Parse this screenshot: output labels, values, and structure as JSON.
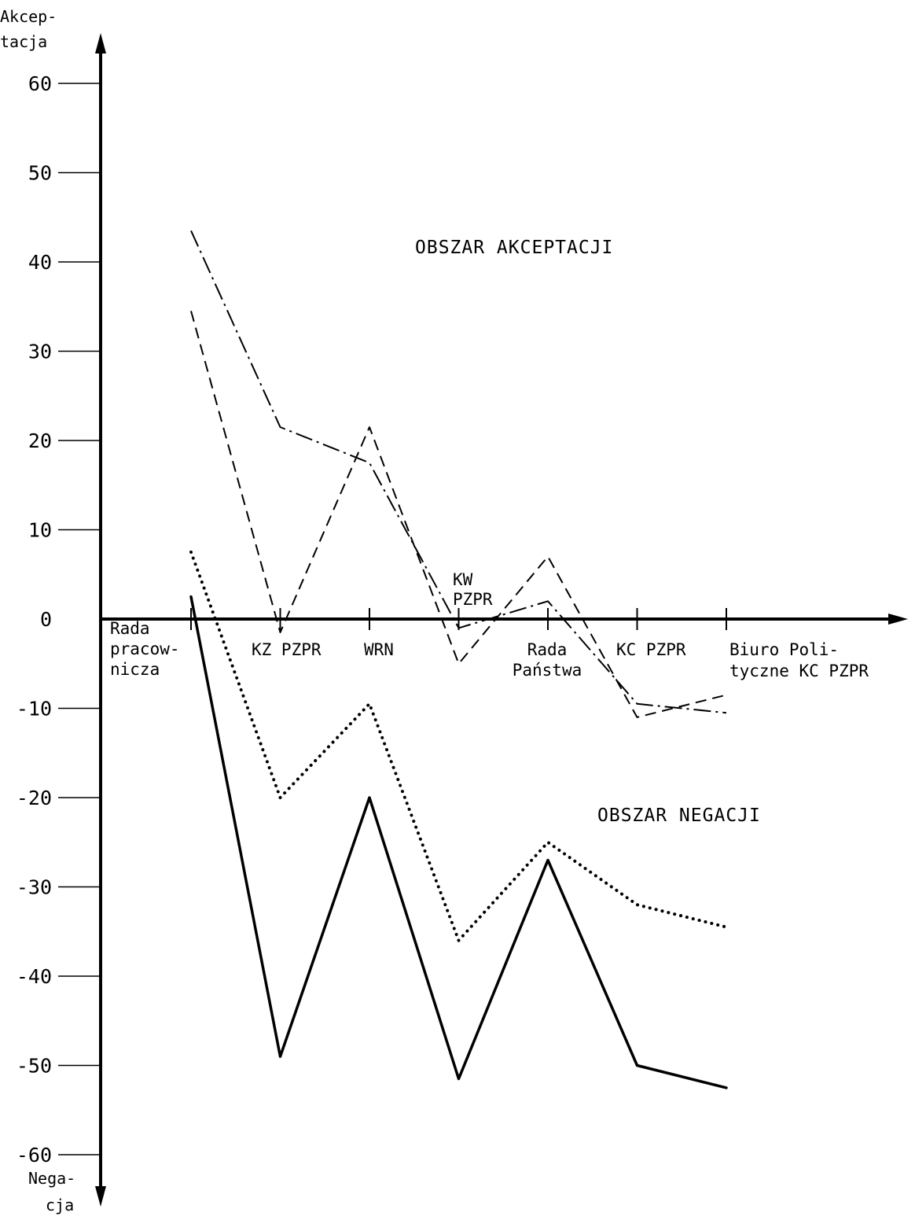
{
  "chart_data": {
    "type": "line",
    "title": "",
    "ylabel_top": [
      "Akcep-",
      "tacja"
    ],
    "ylabel_bottom": [
      "Nega-",
      "cja"
    ],
    "ylim": [
      -60,
      60
    ],
    "yticks": [
      60,
      50,
      40,
      30,
      20,
      10,
      0,
      -10,
      -20,
      -30,
      -40,
      -50,
      -60
    ],
    "ytick_labels": [
      "60",
      "50",
      "40",
      "30",
      "20",
      "10",
      "0",
      "-10",
      "-20",
      "-30",
      "-40",
      "-50",
      "-60"
    ],
    "categories": [
      [
        "Rada",
        "pracow-",
        "nicza"
      ],
      [
        "KZ PZPR"
      ],
      [
        "WRN"
      ],
      [
        "KW",
        "PZPR"
      ],
      [
        "Rada",
        "Państwa"
      ],
      [
        "KC PZPR"
      ],
      [
        "Biuro Poli-",
        "tyczne KC PZPR"
      ]
    ],
    "series": [
      {
        "style": "dash-dot",
        "values": [
          43.5,
          21.5,
          17.5,
          -1,
          2,
          -9.5,
          -10.5
        ]
      },
      {
        "style": "dashed",
        "values": [
          34.5,
          -1.5,
          21.5,
          -5,
          7,
          -11,
          -8.5
        ]
      },
      {
        "style": "dotted",
        "values": [
          7.5,
          -20,
          -9.5,
          -36,
          -25,
          -32,
          -34.5
        ]
      },
      {
        "style": "solid",
        "values": [
          2.5,
          -49,
          -20,
          -51.5,
          -27,
          -50,
          -52.5
        ]
      }
    ],
    "annotations": [
      {
        "text": "OBSZAR AKCEPTACJI",
        "x": 3.5,
        "y": 40
      },
      {
        "text": "OBSZAR NEGACJI",
        "x": 5,
        "y": -22
      }
    ],
    "grid": false,
    "legend": "none"
  }
}
